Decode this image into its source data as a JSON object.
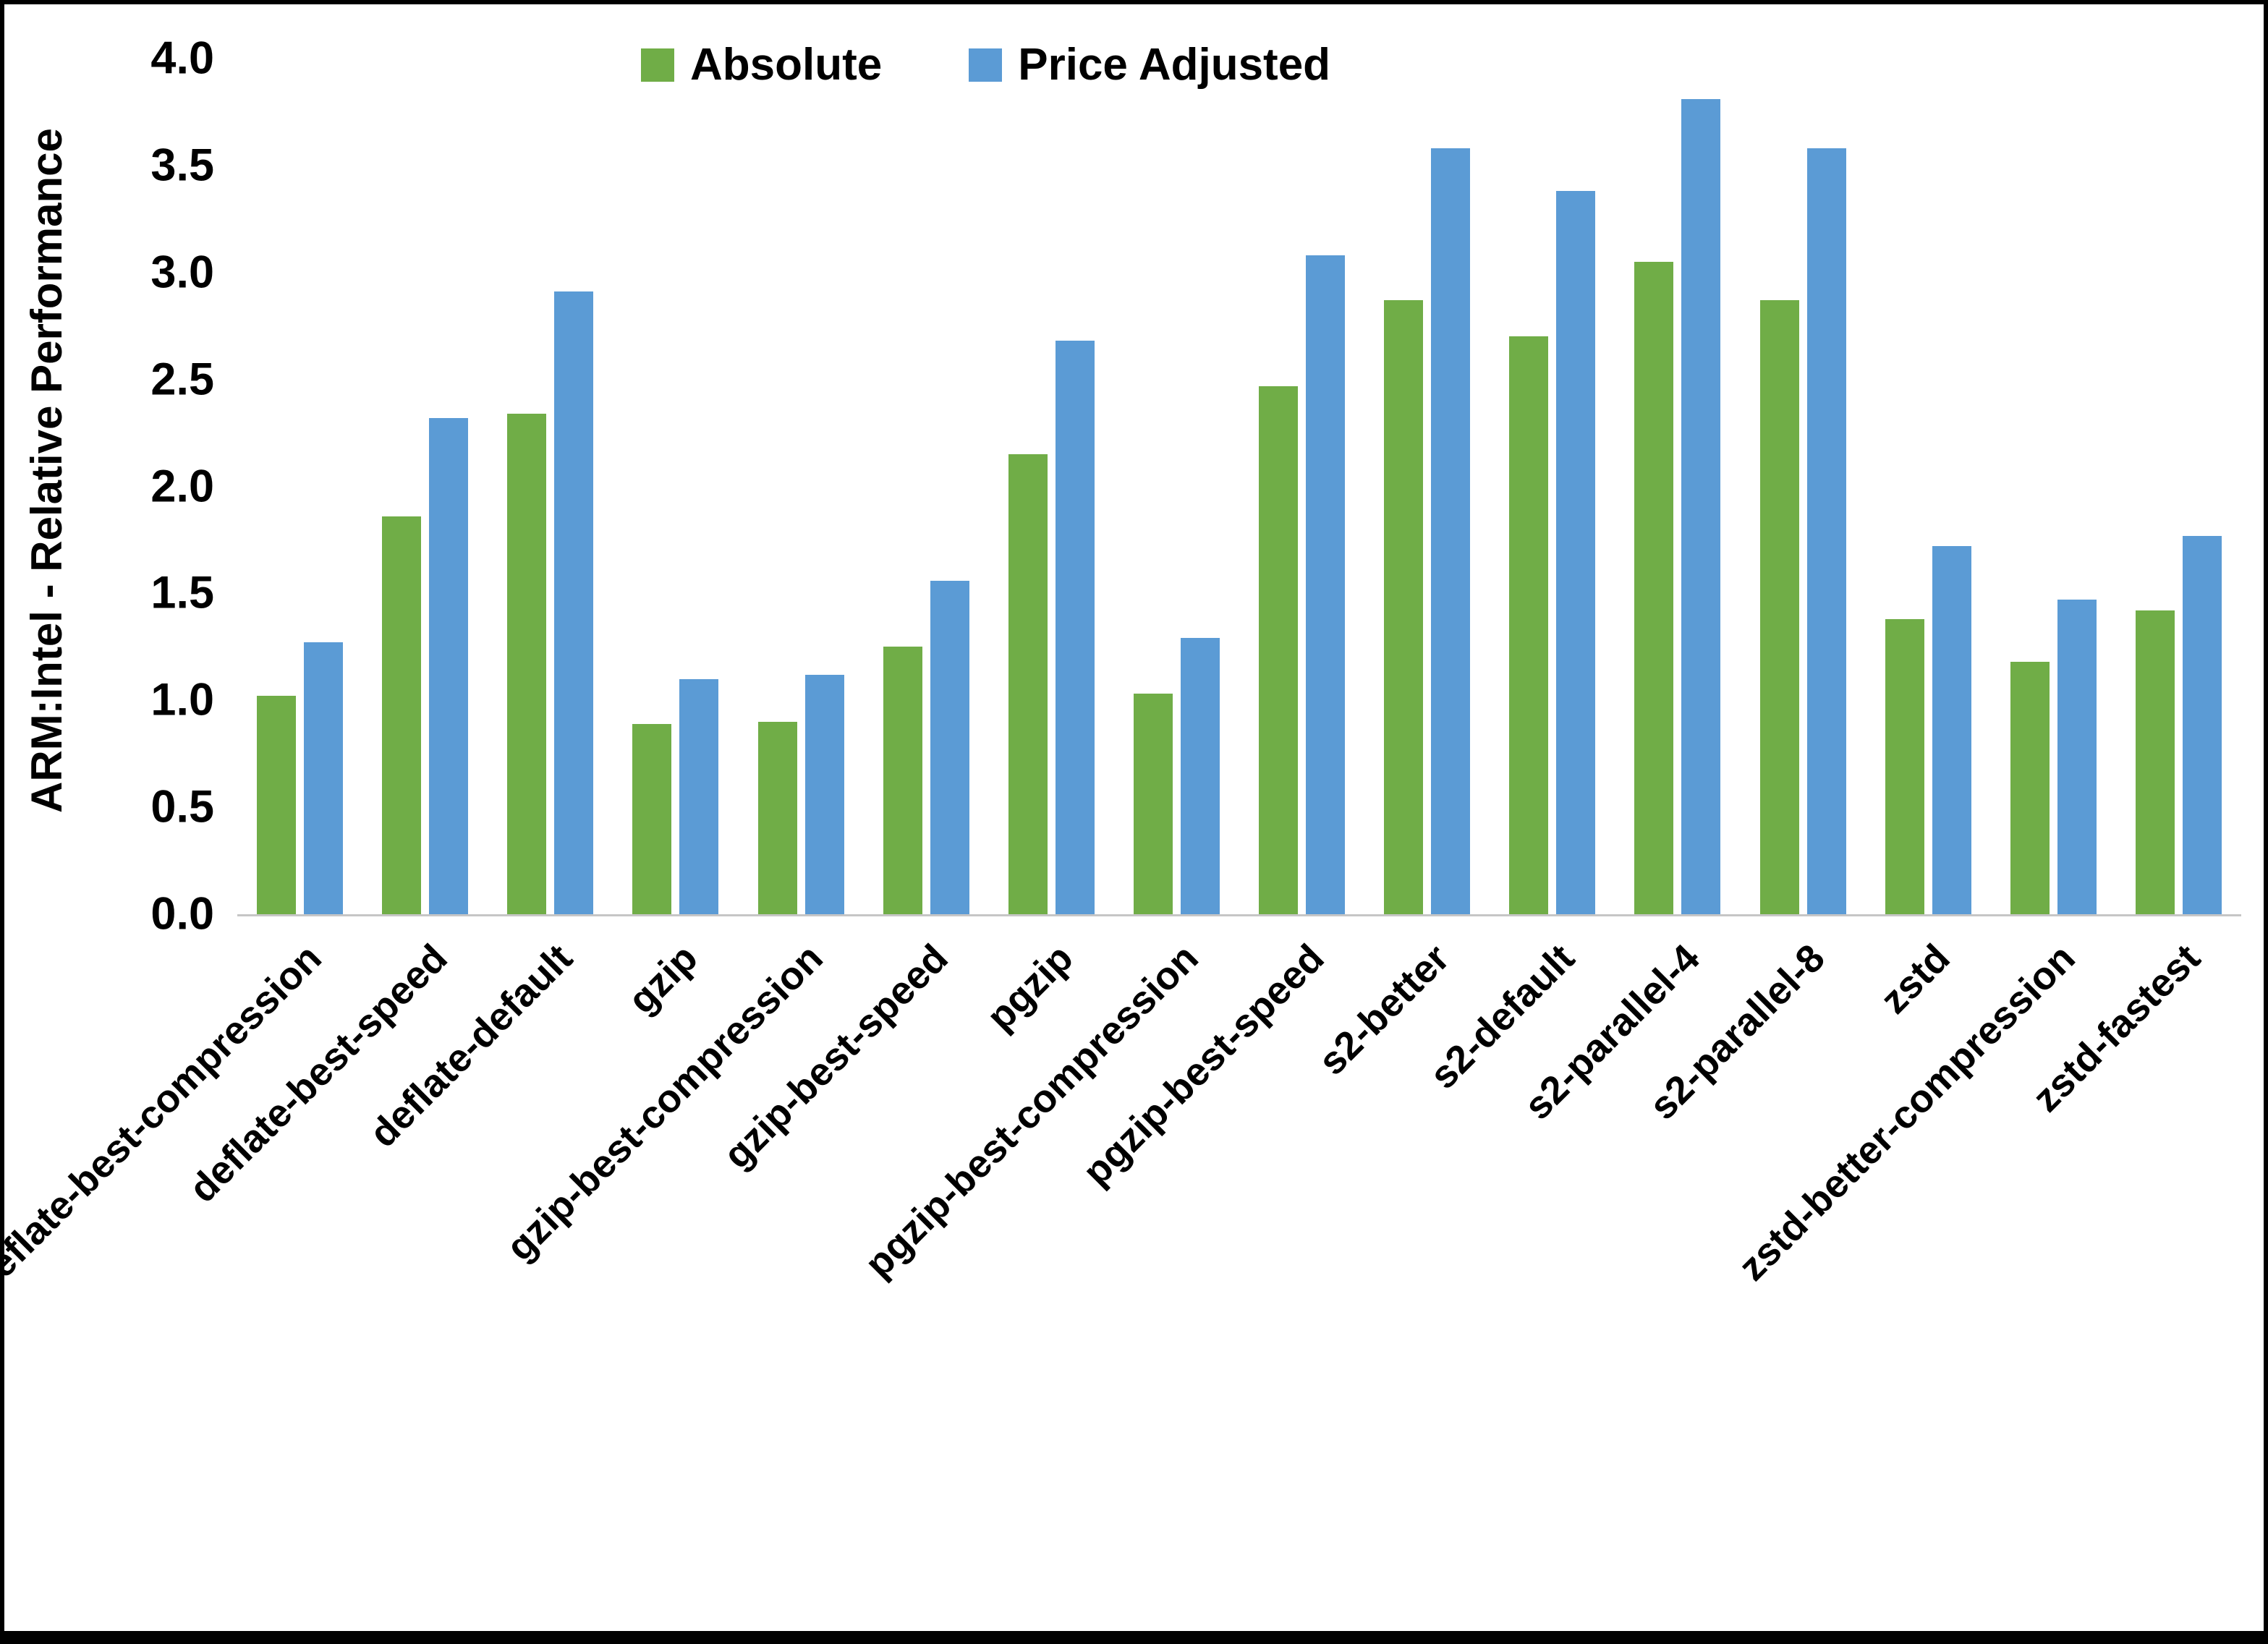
{
  "figure": {
    "background": "#ffffff",
    "border_color": "#000000"
  },
  "chart_data": {
    "type": "bar",
    "title": "",
    "xlabel": "",
    "ylabel": "ARM:Intel - Relative Performance",
    "ylim": [
      0,
      4.0
    ],
    "ytick_step": 0.5,
    "grid": false,
    "legend_position": "top-center",
    "categories": [
      "deflate-best-compression",
      "deflate-best-speed",
      "deflate-default",
      "gzip",
      "gzip-best-compression",
      "gzip-best-speed",
      "pgzip",
      "pgzip-best-compression",
      "pgzip-best-speed",
      "s2-better",
      "s2-default",
      "s2-parallel-4",
      "s2-parallel-8",
      "zstd",
      "zstd-better-compression",
      "zstd-fastest"
    ],
    "series": [
      {
        "name": "Absolute",
        "color": "#70AD47",
        "values": [
          1.02,
          1.86,
          2.34,
          0.89,
          0.9,
          1.25,
          2.15,
          1.03,
          2.47,
          2.87,
          2.7,
          3.05,
          2.87,
          1.38,
          1.18,
          1.42
        ]
      },
      {
        "name": "Price Adjusted",
        "color": "#5B9BD5",
        "values": [
          1.27,
          2.32,
          2.91,
          1.1,
          1.12,
          1.56,
          2.68,
          1.29,
          3.08,
          3.58,
          3.38,
          3.81,
          3.58,
          1.72,
          1.47,
          1.77
        ]
      }
    ]
  }
}
